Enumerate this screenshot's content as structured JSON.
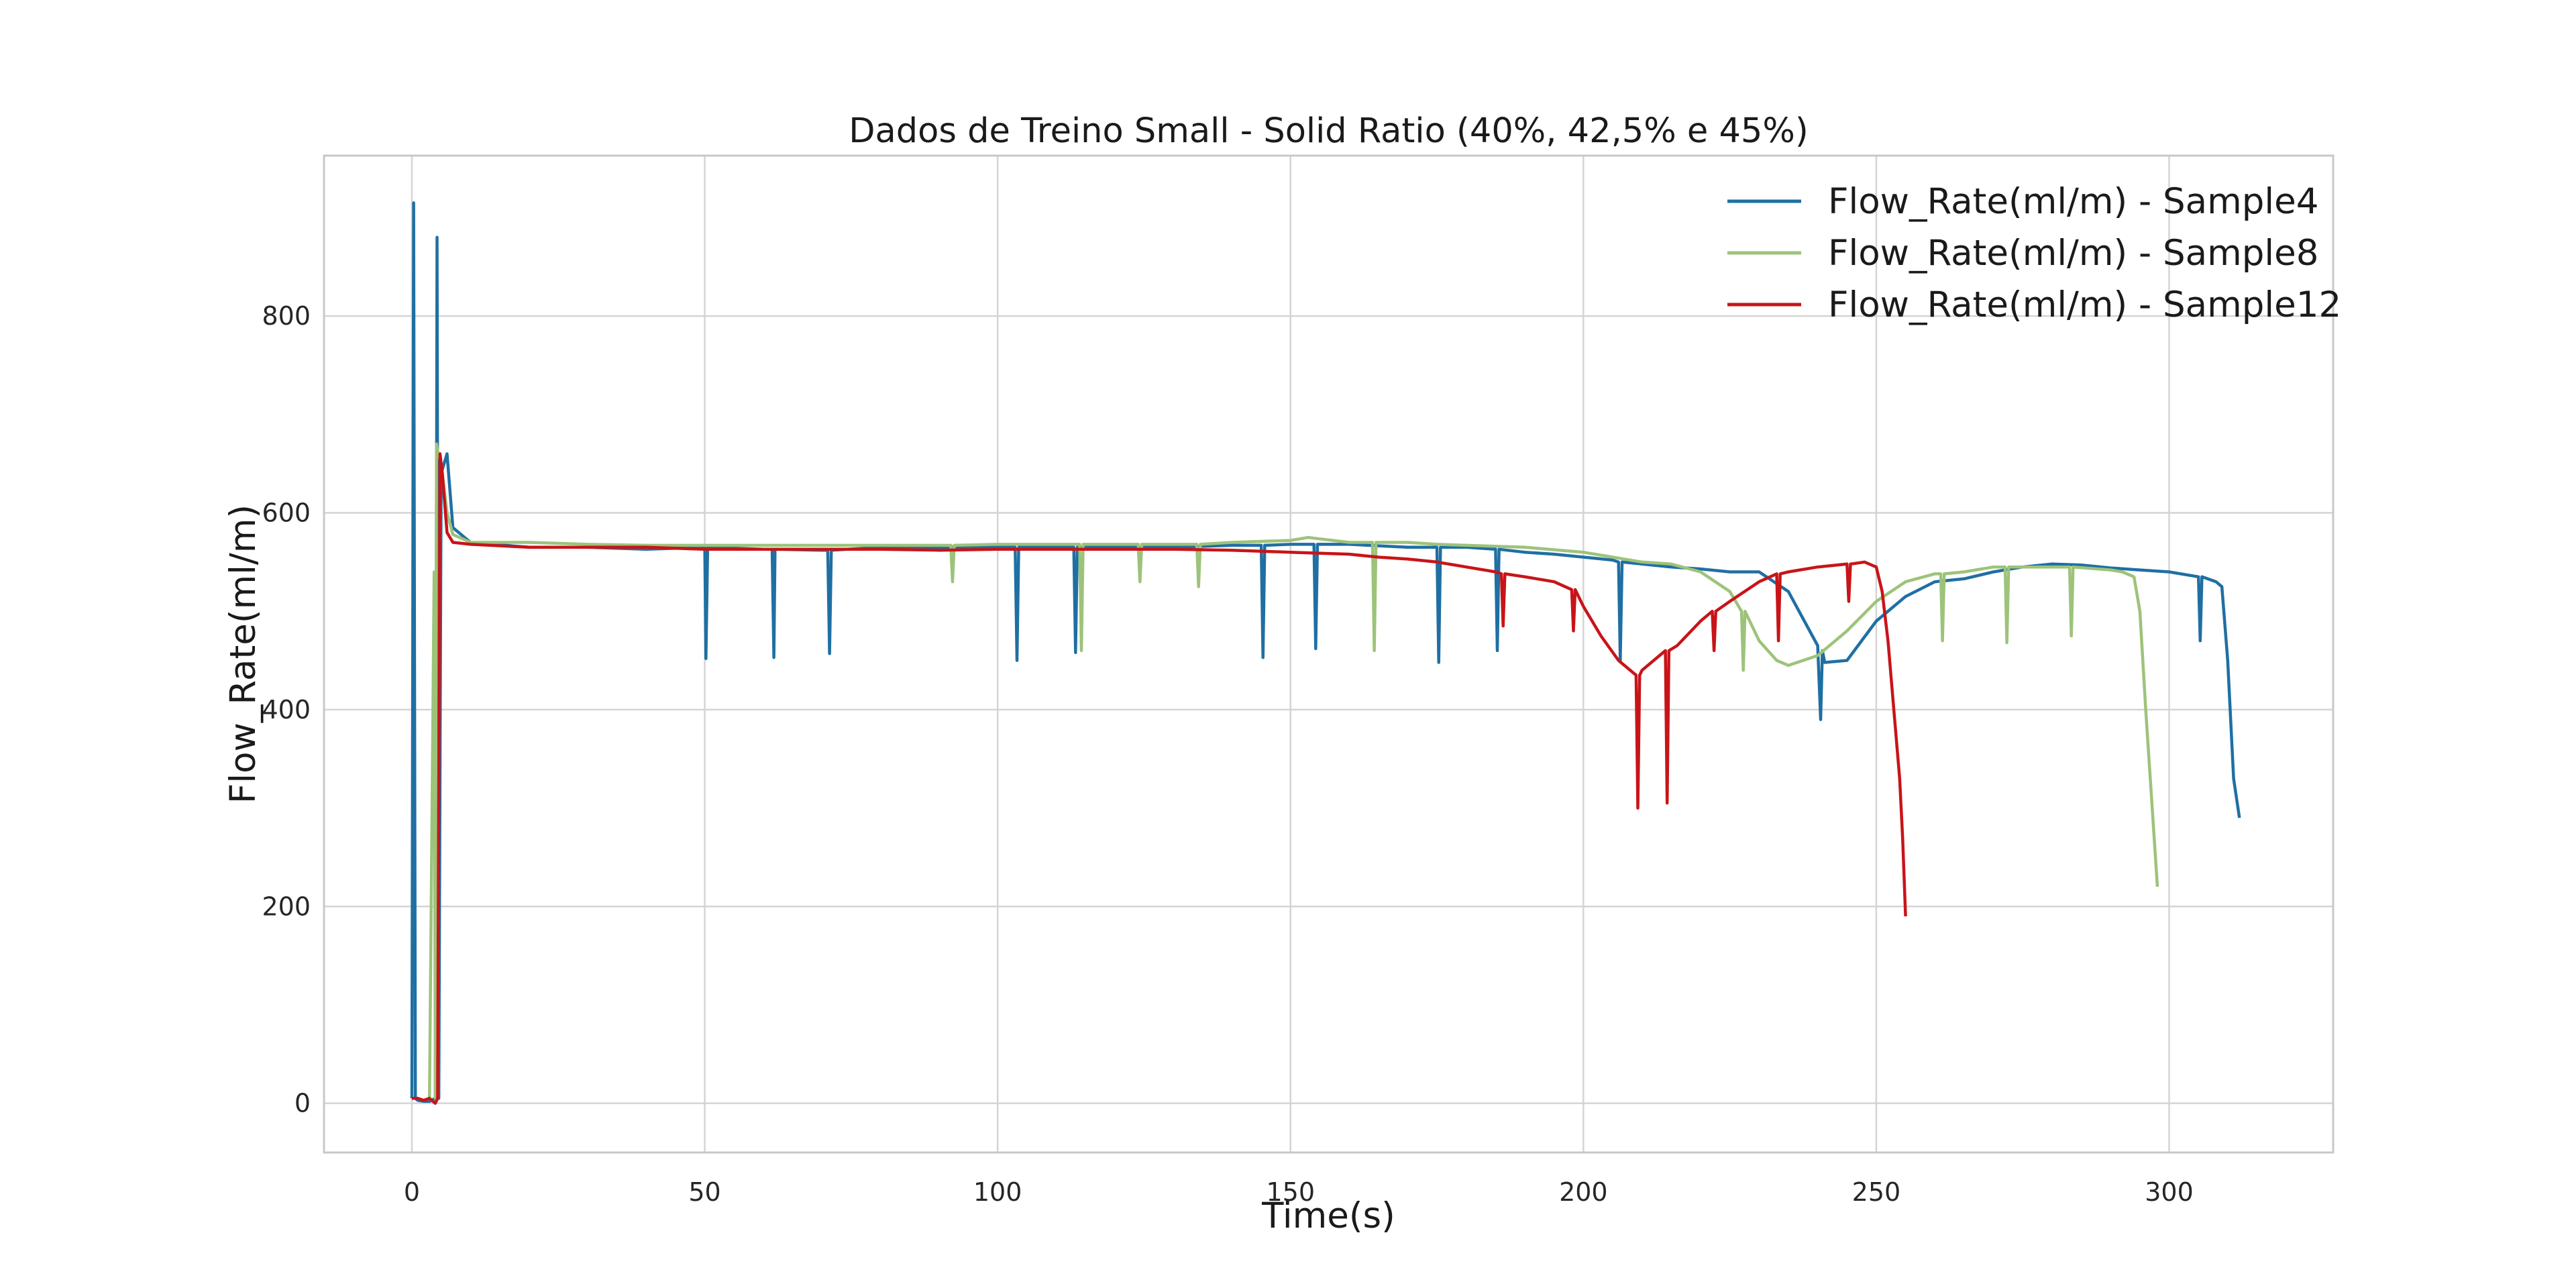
{
  "chart_data": {
    "type": "line",
    "title": "Dados de Treino Small - Solid Ratio (40%, 42,5% e 45%)",
    "xlabel": "Time(s)",
    "ylabel": "Flow_Rate(ml/m)",
    "xlim": [
      -15,
      328
    ],
    "ylim": [
      -50,
      963
    ],
    "xticks": [
      0,
      50,
      100,
      150,
      200,
      250,
      300
    ],
    "yticks": [
      0,
      200,
      400,
      600,
      800
    ],
    "xtick_labels": [
      "0",
      "50",
      "100",
      "150",
      "200",
      "250",
      "300"
    ],
    "ytick_labels": [
      "0",
      "200",
      "400",
      "600",
      "800"
    ],
    "grid": true,
    "legend_position": "top-right",
    "series": [
      {
        "name": "Flow_Rate(ml/m) - Sample4",
        "color": "#1f6fa3",
        "x": [
          0,
          0.3,
          0.6,
          1,
          2,
          3,
          4,
          4.3,
          4.6,
          5,
          6,
          7,
          10,
          20,
          30,
          40,
          50,
          50.2,
          50.5,
          60,
          61.5,
          61.8,
          62,
          70,
          71,
          71.3,
          71.6,
          80,
          90,
          100,
          103,
          103.3,
          103.6,
          110,
          113,
          113.3,
          113.6,
          120,
          130,
          140,
          145,
          145.3,
          145.6,
          150,
          154,
          154.3,
          154.6,
          160,
          170,
          175,
          175.3,
          175.6,
          180,
          185,
          185.3,
          185.6,
          190,
          195,
          200,
          205,
          206,
          206.3,
          206.6,
          210,
          215,
          220,
          225,
          230,
          235,
          240,
          240.5,
          240.8,
          241.2,
          245,
          250,
          255,
          260,
          265,
          270,
          275,
          280,
          285,
          290,
          295,
          300,
          305,
          305.3,
          305.6,
          308,
          309,
          310,
          311,
          312
        ],
        "y": [
          5,
          915,
          5,
          3,
          2,
          2,
          5,
          880,
          5,
          640,
          660,
          585,
          570,
          565,
          565,
          563,
          565,
          452,
          565,
          563,
          563,
          453,
          563,
          562,
          562,
          457,
          562,
          565,
          565,
          565,
          565,
          450,
          565,
          565,
          565,
          458,
          565,
          565,
          565,
          567,
          567,
          453,
          567,
          568,
          568,
          462,
          568,
          568,
          565,
          565,
          448,
          565,
          565,
          563,
          460,
          563,
          560,
          558,
          555,
          552,
          550,
          450,
          550,
          548,
          545,
          543,
          540,
          540,
          520,
          465,
          390,
          460,
          448,
          450,
          490,
          515,
          530,
          533,
          540,
          545,
          548,
          547,
          544,
          542,
          540,
          535,
          470,
          535,
          530,
          525,
          450,
          330,
          290
        ]
      },
      {
        "name": "Flow_Rate(ml/m) - Sample8",
        "color": "#9dc37a",
        "x": [
          3,
          3.8,
          4,
          4.2,
          4.5,
          5,
          6,
          7,
          10,
          20,
          30,
          40,
          50,
          60,
          70,
          80,
          90,
          92,
          92.3,
          92.6,
          100,
          110,
          114,
          114.3,
          114.6,
          120,
          124,
          124.3,
          124.6,
          130,
          134,
          134.3,
          134.6,
          140,
          150,
          153,
          160,
          164,
          164.3,
          164.6,
          170,
          175,
          180,
          190,
          200,
          205,
          210,
          215,
          220,
          225,
          227,
          227.3,
          227.6,
          230,
          233,
          235,
          240,
          245,
          250,
          255,
          260,
          261,
          261.3,
          261.6,
          265,
          270,
          272,
          272.3,
          272.6,
          275,
          280,
          283,
          283.3,
          283.6,
          290,
          292,
          294,
          295,
          296,
          297,
          298
        ],
        "y": [
          3,
          540,
          5,
          670,
          660,
          650,
          600,
          578,
          570,
          570,
          568,
          567,
          567,
          567,
          567,
          567,
          567,
          567,
          530,
          567,
          568,
          568,
          568,
          460,
          568,
          568,
          568,
          530,
          568,
          568,
          568,
          525,
          568,
          570,
          572,
          575,
          570,
          570,
          460,
          570,
          570,
          568,
          567,
          565,
          560,
          555,
          550,
          548,
          540,
          520,
          500,
          440,
          500,
          470,
          450,
          445,
          455,
          480,
          510,
          530,
          538,
          538,
          470,
          538,
          540,
          545,
          545,
          468,
          545,
          545,
          545,
          545,
          475,
          545,
          542,
          540,
          535,
          500,
          400,
          310,
          220
        ]
      },
      {
        "name": "Flow_Rate(ml/m) - Sample12",
        "color": "#c81418",
        "x": [
          0,
          1,
          2,
          3,
          4,
          4.4,
          4.8,
          5.2,
          6,
          7,
          10,
          20,
          30,
          40,
          50,
          60,
          70,
          80,
          90,
          100,
          110,
          120,
          130,
          140,
          150,
          160,
          165,
          170,
          175,
          180,
          185,
          186,
          186.3,
          186.6,
          190,
          195,
          198,
          198.3,
          198.6,
          200,
          203,
          206,
          209,
          209.3,
          209.6,
          210,
          214,
          214.3,
          214.6,
          216,
          220,
          222,
          222.3,
          222.6,
          225,
          230,
          233,
          233.3,
          233.6,
          235,
          240,
          245,
          245.3,
          245.6,
          248,
          250,
          251,
          252,
          253,
          254,
          254.5,
          255
        ],
        "y": [
          5,
          5,
          3,
          5,
          0,
          5,
          660,
          640,
          580,
          570,
          568,
          565,
          565,
          565,
          563,
          563,
          563,
          563,
          562,
          563,
          563,
          563,
          563,
          562,
          560,
          558,
          555,
          553,
          550,
          545,
          540,
          538,
          485,
          538,
          535,
          530,
          522,
          480,
          522,
          505,
          475,
          450,
          435,
          300,
          435,
          440,
          460,
          305,
          460,
          465,
          490,
          500,
          460,
          500,
          510,
          530,
          538,
          470,
          538,
          540,
          545,
          548,
          510,
          548,
          550,
          545,
          520,
          470,
          400,
          330,
          270,
          190
        ]
      }
    ]
  }
}
